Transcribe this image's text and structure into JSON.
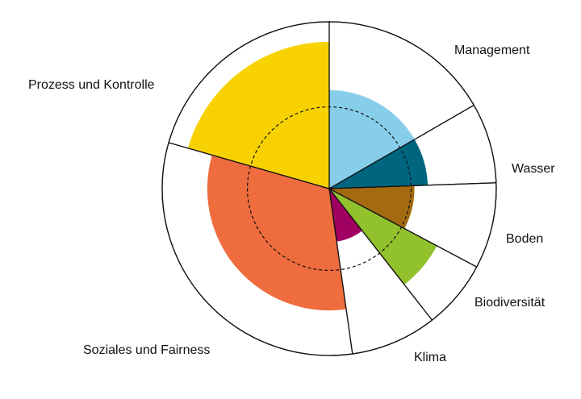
{
  "chart_data": {
    "type": "polar-area",
    "title": "",
    "categories": [
      "Management",
      "Wasser",
      "Boden",
      "Biodiversität",
      "Klima",
      "Soziales und Fairness",
      "Prozess und Kontrolle"
    ],
    "sector_start_deg": [
      0,
      60,
      88,
      118,
      142,
      172,
      286
    ],
    "sector_end_deg": [
      60,
      88,
      118,
      142,
      172,
      286,
      360
    ],
    "values": [
      0.59,
      0.59,
      0.51,
      0.73,
      0.32,
      0.73,
      0.88
    ],
    "max_value": 1.0,
    "reference_level": 0.49,
    "colors": [
      "#87CEEB",
      "#006680",
      "#A36A10",
      "#92C12E",
      "#A0005F",
      "#EE6C3E",
      "#F8D200"
    ]
  }
}
